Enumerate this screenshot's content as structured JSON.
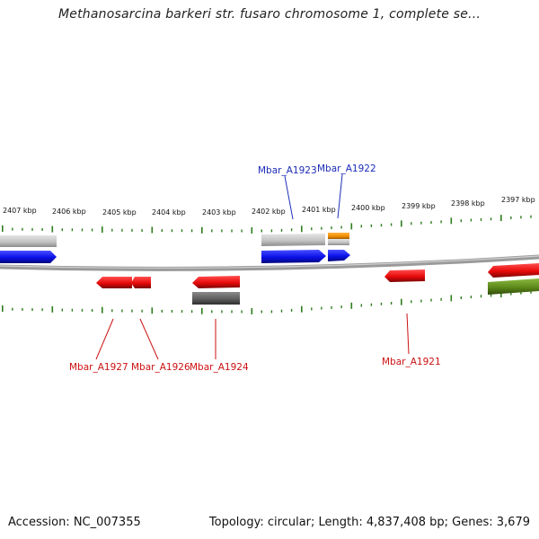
{
  "title": "Methanosarcina barkeri str. fusaro chromosome 1, complete se...",
  "ticks": [
    {
      "kbp": 2407,
      "label": "2407 kbp"
    },
    {
      "kbp": 2406,
      "label": "2406 kbp"
    },
    {
      "kbp": 2405,
      "label": "2405 kbp"
    },
    {
      "kbp": 2404,
      "label": "2404 kbp"
    },
    {
      "kbp": 2403,
      "label": "2403 kbp"
    },
    {
      "kbp": 2402,
      "label": "2402 kbp"
    },
    {
      "kbp": 2401,
      "label": "2401 kbp"
    },
    {
      "kbp": 2400,
      "label": "2400 kbp"
    },
    {
      "kbp": 2399,
      "label": "2399 kbp"
    },
    {
      "kbp": 2398,
      "label": "2398 kbp"
    },
    {
      "kbp": 2397,
      "label": "2397 kbp"
    }
  ],
  "gene_labels": [
    {
      "name": "Mbar_A1923",
      "strand": "forward"
    },
    {
      "name": "Mbar_A1922",
      "strand": "forward"
    },
    {
      "name": "Mbar_A1927",
      "strand": "reverse"
    },
    {
      "name": "Mbar_A1926",
      "strand": "reverse"
    },
    {
      "name": "Mbar_A1924",
      "strand": "reverse"
    },
    {
      "name": "Mbar_A1921",
      "strand": "reverse"
    }
  ],
  "colors": {
    "forward_gene": "#0a10e8",
    "reverse_gene": "#e80a0a",
    "forward_label": "#1b2bb8",
    "reverse_label": "#cc1111",
    "tick": "#2e7d1e",
    "backbone": "#8a8a8a",
    "light_feature": "#c4c4c4",
    "dark_feature": "#5e5e5e",
    "orange_feature": "#f08c00",
    "olive_feature": "#5d8a1a"
  },
  "footer": {
    "accession": "Accession: NC_007355",
    "summary": "Topology: circular; Length: 4,837,408 bp; Genes: 3,679"
  }
}
